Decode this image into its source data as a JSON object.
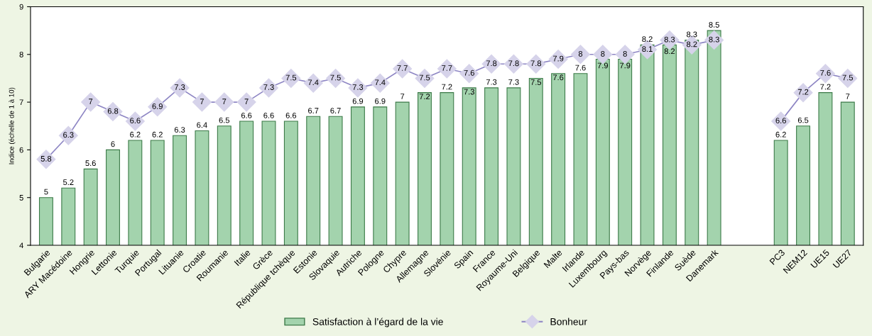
{
  "chart_data": {
    "type": "bar",
    "ylabel": "Indice (échelle de 1 à 10)",
    "ylim": [
      4,
      9
    ],
    "yticks": [
      4,
      5,
      6,
      7,
      8,
      9
    ],
    "grid": false,
    "legend": "bottom",
    "data_labels": true,
    "categories": [
      "Bulgarie",
      "ARY Macédoine",
      "Hongrie",
      "Lettonie",
      "Turquie",
      "Portugal",
      "Lituanie",
      "Croatie",
      "Roumanie",
      "Italie",
      "Grèce",
      "République tchèque",
      "Estonie",
      "Slovaquie",
      "Autriche",
      "Pologne",
      "Chypre",
      "Allemagne",
      "Slovénie",
      "Spain",
      "France",
      "Royaume-Uni",
      "Belgique",
      "Malte",
      "Irlande",
      "Luxembourg",
      "Pays-bas",
      "Norvège",
      "Finlande",
      "Suède",
      "Danemark",
      null,
      null,
      "PC3",
      "NEM12",
      "UE15",
      "UE27"
    ],
    "series": [
      {
        "name": "Satisfaction à l’égard de la vie",
        "color": "#a3d3ad",
        "values": [
          5,
          5.2,
          5.6,
          6,
          6.2,
          6.2,
          6.3,
          6.4,
          6.5,
          6.6,
          6.6,
          6.6,
          6.7,
          6.7,
          6.9,
          6.9,
          7,
          7.2,
          7.2,
          7.3,
          7.3,
          7.3,
          7.5,
          7.6,
          7.6,
          7.9,
          7.9,
          8.2,
          8.2,
          8.3,
          8.5,
          null,
          null,
          6.2,
          6.5,
          7.2,
          7
        ]
      },
      {
        "name": "Bonheur",
        "type": "line",
        "color": "#8e86c4",
        "marker": "diamond",
        "values": [
          5.8,
          6.3,
          7,
          6.8,
          6.6,
          6.9,
          7.3,
          7,
          7,
          7,
          7.3,
          7.5,
          7.4,
          7.5,
          7.3,
          7.4,
          7.7,
          7.5,
          7.7,
          7.6,
          7.8,
          7.8,
          7.8,
          7.9,
          8,
          8,
          8,
          8.1,
          8.3,
          8.2,
          8.3,
          null,
          null,
          6.6,
          7.2,
          7.6,
          7.5
        ]
      }
    ]
  }
}
